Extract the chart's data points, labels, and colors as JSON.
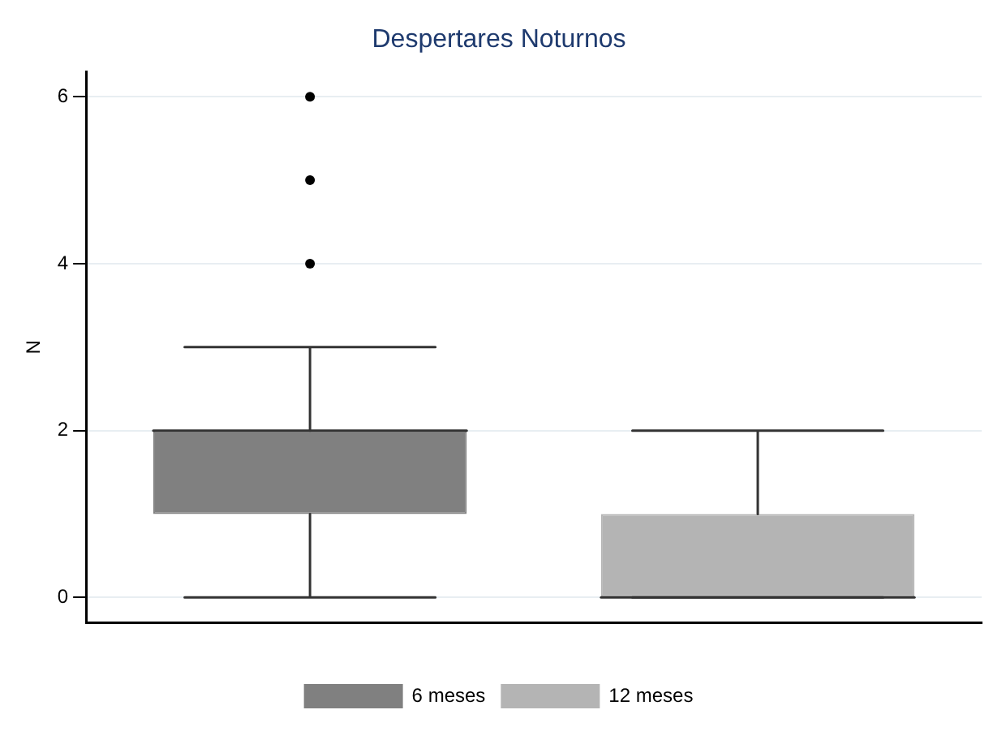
{
  "chart_data": {
    "type": "box",
    "title": "Despertares Noturnos",
    "ylabel": "N",
    "categories": [
      null
    ],
    "series": [
      {
        "name": "6 meses",
        "color": "#808080",
        "boxes": [
          {
            "low": 0,
            "q1": 1,
            "median": 2,
            "q3": 2,
            "high": 3,
            "outliers": [
              4,
              5,
              6
            ]
          }
        ]
      },
      {
        "name": "12 meses",
        "color": "#b4b4b4",
        "boxes": [
          {
            "low": 0,
            "q1": 0,
            "median": 0,
            "q3": 1,
            "high": 2
          }
        ]
      }
    ],
    "ylim": [
      -0.3,
      6.3
    ],
    "yticks": [
      0,
      2,
      4,
      6
    ],
    "grid": "y",
    "legend": "bottom"
  }
}
